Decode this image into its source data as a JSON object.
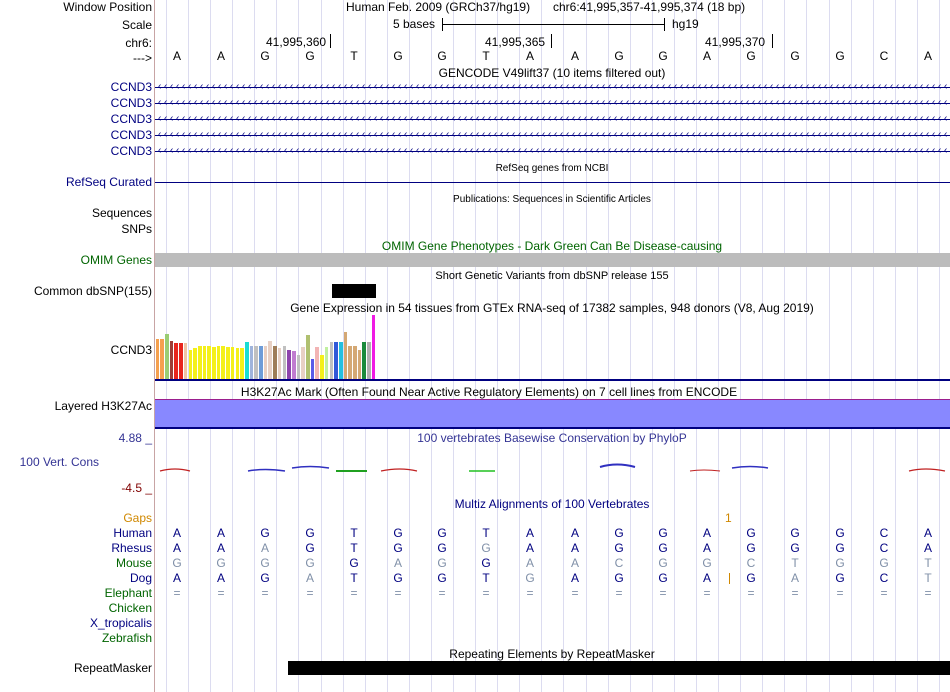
{
  "labels": {
    "window_position": "Window Position",
    "scale": "Scale",
    "chr": "chr6:",
    "strand": "--->",
    "gencode": [
      "CCND3",
      "CCND3",
      "CCND3",
      "CCND3",
      "CCND3"
    ],
    "refseq_curated": "RefSeq Curated",
    "sequences": "Sequences",
    "snps": "SNPs",
    "omim_genes": "OMIM Genes",
    "common_dbsnp": "Common dbSNP(155)",
    "gtex_gene": "CCND3",
    "layered_h3k27ac": "Layered H3K27Ac",
    "cons_max": "4.88 _",
    "cons_label": "100 Vert. Cons",
    "cons_min": "-4.5 _",
    "gaps": "Gaps",
    "species": [
      "Human",
      "Rhesus",
      "Mouse",
      "Dog",
      "Elephant",
      "Chicken",
      "X_tropicalis",
      "Zebrafish"
    ],
    "repeatmasker": "RepeatMasker"
  },
  "header": {
    "assembly": "Human Feb. 2009 (GRCh37/hg19)",
    "position": "chr6:41,995,357-41,995,374 (18 bp)",
    "scale_text": "5 bases",
    "scale_db": "hg19",
    "ticks": [
      "41,995,360",
      "41,995,365",
      "41,995,370"
    ]
  },
  "bases": [
    "A",
    "A",
    "G",
    "G",
    "T",
    "G",
    "G",
    "T",
    "A",
    "A",
    "G",
    "G",
    "A",
    "G",
    "G",
    "G",
    "C",
    "A"
  ],
  "track_titles": {
    "gencode": "GENCODE V49lift37 (10 items filtered out)",
    "refseq": "RefSeq genes from NCBI",
    "publications": "Publications: Sequences in Scientific Articles",
    "omim": "OMIM Gene Phenotypes - Dark Green Can Be Disease-causing",
    "dbsnp": "Short Genetic Variants from dbSNP release 155",
    "gtex": "Gene Expression in 54 tissues from GTEx RNA-seq of 17382 samples, 948 donors (V8, Aug 2019)",
    "h3k27ac": "H3K27Ac Mark (Often Found Near Active Regulatory Elements) on 7 cell lines from ENCODE",
    "cons": "100 vertebrates Basewise Conservation by PhyloP",
    "multiz": "Multiz Alignments of 100 Vertebrates",
    "repeat": "Repeating Elements by RepeatMasker"
  },
  "gap_marker": "1",
  "alignments": {
    "Human": "AAGGTGGTAAGGAGGGCA",
    "Rhesus": "AAAGTGGGAAGGAGGGCA",
    "Mouse": "GGGGGAGGAACGGCTGGT",
    "Dog": "AAGATGGTGAGGA|GAGCT",
    "Elephant": "=================="
  },
  "alignment_dim": {
    "Human": "000000000000000000",
    "Rhesus": "001000010000000000",
    "Mouse": "111101101111111111",
    "Dog": "000100001000001001",
    "Elephant": "111111111111111111"
  },
  "gtex_colors": [
    "#f5a04e",
    "#f5a04e",
    "#9acd73",
    "#9e3c36",
    "#e8241c",
    "#e8241c",
    "#efc4a4",
    "#f4f01a",
    "#f4f01a",
    "#f4f01a",
    "#f4f01a",
    "#f4f01a",
    "#f4f01a",
    "#f4f01a",
    "#f4f01a",
    "#f4f01a",
    "#f4f01a",
    "#f4f01a",
    "#f4f01a",
    "#1adcd4",
    "#a0b4dc",
    "#c0c0c0",
    "#6e9cd8",
    "#e8d0c4",
    "#e8d0c4",
    "#9e7c58",
    "#e8d0c4",
    "#c0c0c0",
    "#8e44ad",
    "#c07cd0",
    "#c0c0c0",
    "#e8d0c4",
    "#b0c070",
    "#5a5ae8",
    "#f2b4b4",
    "#f4f01a",
    "#c0f0a0",
    "#c0c0c0",
    "#3058d8",
    "#24c0e0",
    "#d4a874",
    "#d4a874",
    "#d4a874",
    "#d4a874",
    "#1a8a3c",
    "#b0b0b0",
    "#f01ae4"
  ],
  "gtex_values": [
    0.62,
    0.62,
    0.7,
    0.6,
    0.56,
    0.56,
    0.56,
    0.45,
    0.49,
    0.52,
    0.52,
    0.52,
    0.5,
    0.52,
    0.52,
    0.5,
    0.5,
    0.48,
    0.48,
    0.58,
    0.52,
    0.52,
    0.52,
    0.52,
    0.6,
    0.52,
    0.48,
    0.52,
    0.45,
    0.44,
    0.38,
    0.5,
    0.68,
    0.32,
    0.5,
    0.38,
    0.5,
    0.58,
    0.58,
    0.58,
    0.74,
    0.52,
    0.52,
    0.46,
    0.58,
    0.58,
    1.0
  ],
  "colors": {
    "label_blue": "#000080",
    "label_green": "#006400",
    "gaps_orange": "#d08800",
    "cons_text": "#343494",
    "h3k27ac_fill": "#8888ff",
    "h3k27ac_line": "#9b1e8e",
    "navy": "#000080",
    "omim_gray": "#bcbcbc"
  }
}
